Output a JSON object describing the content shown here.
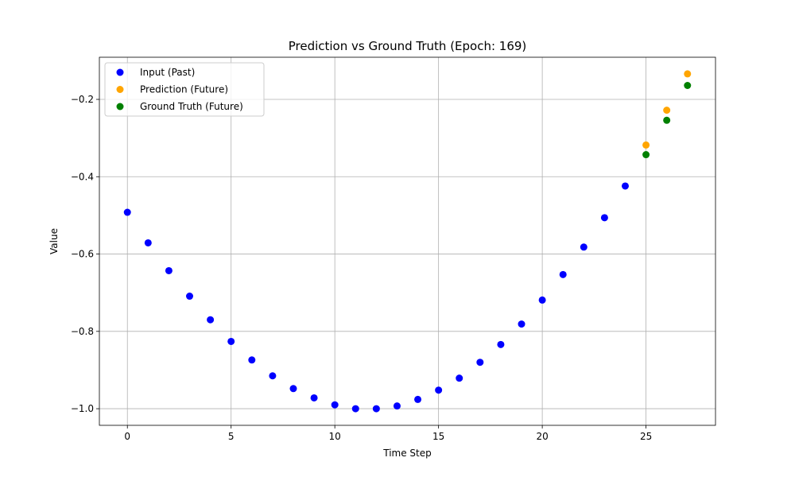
{
  "chart_data": {
    "type": "scatter",
    "title": "Prediction vs Ground Truth (Epoch: 169)",
    "xlabel": "Time Step",
    "ylabel": "Value",
    "xlim": [
      -1.35,
      28.35
    ],
    "ylim": [
      -1.043,
      -0.091
    ],
    "xticks": [
      0,
      5,
      10,
      15,
      20,
      25
    ],
    "yticks": [
      -1.0,
      -0.8,
      -0.6,
      -0.4,
      -0.2
    ],
    "grid": true,
    "legend_position": "top-left",
    "series": [
      {
        "name": "Input (Past)",
        "color": "#0000ff",
        "x": [
          0,
          1,
          2,
          3,
          4,
          5,
          6,
          7,
          8,
          9,
          10,
          11,
          12,
          13,
          14,
          15,
          16,
          17,
          18,
          19,
          20,
          21,
          22,
          23,
          24
        ],
        "y": [
          -0.492,
          -0.571,
          -0.643,
          -0.709,
          -0.77,
          -0.826,
          -0.874,
          -0.915,
          -0.948,
          -0.972,
          -0.99,
          -1.0,
          -1.0,
          -0.993,
          -0.976,
          -0.952,
          -0.921,
          -0.88,
          -0.834,
          -0.781,
          -0.719,
          -0.653,
          -0.582,
          -0.506,
          -0.424
        ]
      },
      {
        "name": "Prediction (Future)",
        "color": "#ffa500",
        "x": [
          25,
          26,
          27
        ],
        "y": [
          -0.318,
          -0.228,
          -0.134
        ]
      },
      {
        "name": "Ground Truth (Future)",
        "color": "#008000",
        "x": [
          25,
          26,
          27
        ],
        "y": [
          -0.343,
          -0.254,
          -0.164
        ]
      }
    ]
  }
}
